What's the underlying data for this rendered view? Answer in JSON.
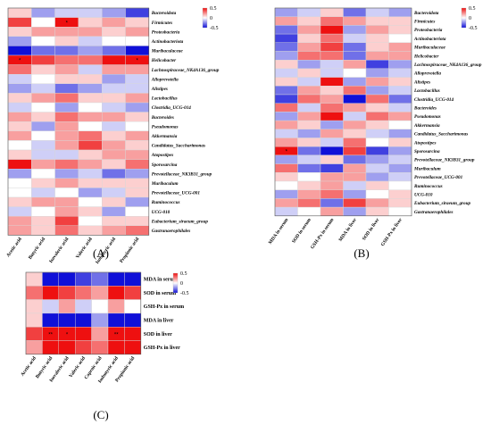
{
  "colors": {
    "low": "#1010d8",
    "mid": "#ffffff",
    "high": "#ee1010"
  },
  "legend": {
    "max": "0.5",
    "zero": "0",
    "min": "-0.5"
  },
  "chart_data": [
    {
      "type": "heatmap",
      "panel_label": "(A)",
      "rows": [
        "Bacteroidota",
        "Firmicutes",
        "Proteobacteria",
        "Actinobacteriota",
        "Muribaculaceae",
        "Helicobacter",
        "Lachnospiraceae_NK4A136_group",
        "Alloprevotella",
        "Alistipes",
        "Lactobacillus",
        "Clostridia_UCG-014",
        "Bacteroides",
        "Pseudomonas",
        "Akkermansia",
        "Candidatus_Saccharimonas",
        "Atopostipes",
        "Sporosarcina",
        "Prevotellaceae_NK3B31_group",
        "Muribaculum",
        "Prevotellaceae_UCG-001",
        "Ruminococcus",
        "UCG-010",
        "Eubacterium_siraeum_group",
        "Gastranaerophilales"
      ],
      "columns": [
        "Acetic acid",
        "Butyric acid",
        "Isovaleric acid",
        "Valeric acid",
        "Isobutyric acid",
        "Propionic acid"
      ],
      "values": [
        [
          0.1,
          -0.2,
          -0.1,
          -0.1,
          -0.2,
          -0.4
        ],
        [
          0.4,
          0.0,
          0.6,
          0.1,
          0.2,
          0.1
        ],
        [
          0.1,
          0.2,
          0.2,
          0.2,
          0.1,
          0.2
        ],
        [
          -0.2,
          0.0,
          0.1,
          -0.1,
          0.0,
          0.0
        ],
        [
          -0.7,
          -0.3,
          -0.3,
          -0.2,
          -0.3,
          -0.5
        ],
        [
          0.5,
          0.4,
          0.3,
          0.3,
          0.6,
          0.5
        ],
        [
          0.3,
          0.1,
          0.2,
          -0.1,
          0.2,
          0.2
        ],
        [
          -0.1,
          0.0,
          0.1,
          0.1,
          -0.2,
          -0.1
        ],
        [
          -0.2,
          -0.1,
          -0.3,
          -0.2,
          -0.1,
          -0.1
        ],
        [
          0.1,
          0.2,
          0.3,
          0.1,
          0.1,
          0.2
        ],
        [
          -0.1,
          0.0,
          -0.2,
          0.0,
          -0.1,
          -0.2
        ],
        [
          0.2,
          0.1,
          0.3,
          0.2,
          0.2,
          0.1
        ],
        [
          0.1,
          -0.2,
          0.2,
          0.0,
          -0.1,
          0.0
        ],
        [
          0.2,
          0.0,
          0.2,
          0.3,
          0.1,
          0.2
        ],
        [
          0.0,
          -0.1,
          0.2,
          0.4,
          0.2,
          0.1
        ],
        [
          0.1,
          -0.1,
          -0.1,
          0.1,
          0.2,
          0.2
        ],
        [
          0.5,
          0.2,
          0.3,
          0.2,
          0.1,
          0.3
        ],
        [
          -0.2,
          0.0,
          -0.2,
          -0.1,
          -0.3,
          -0.2
        ],
        [
          0.0,
          0.1,
          0.2,
          0.1,
          0.1,
          0.1
        ],
        [
          0.0,
          -0.1,
          0.0,
          -0.2,
          -0.1,
          0.1
        ],
        [
          0.1,
          0.2,
          0.2,
          0.0,
          0.1,
          -0.2
        ],
        [
          -0.1,
          0.0,
          0.2,
          0.1,
          -0.2,
          0.0
        ],
        [
          0.2,
          0.1,
          0.4,
          0.0,
          0.1,
          0.1
        ],
        [
          0.2,
          0.1,
          0.3,
          0.1,
          0.2,
          0.3
        ]
      ],
      "stars": [
        {
          "row": 1,
          "col": 2,
          "text": "*"
        },
        {
          "row": 5,
          "col": 0,
          "text": "*"
        },
        {
          "row": 5,
          "col": 5,
          "text": "*"
        }
      ],
      "legend_range": [
        -0.5,
        0.5
      ]
    },
    {
      "type": "heatmap",
      "panel_label": "(B)",
      "rows": [
        "Bacteroidota",
        "Firmicutes",
        "Proteobacteria",
        "Actinobacteriota",
        "Muribaculaceae",
        "Helicobacter",
        "Lachnospiraceae_NK4A136_group",
        "Alloprevotella",
        "Alistipes",
        "Lactobacillus",
        "Clostridia_UCG-014",
        "Bacteroides",
        "Pseudomonas",
        "Akkermansia",
        "Candidatus_Saccharimonas",
        "Atopostipes",
        "Sporosarcina",
        "Prevotellaceae_NK3B31_group",
        "Muribaculum",
        "Prevotellaceae_UCG-001",
        "Ruminococcus",
        "UCG-010",
        "Eubacterium_siraeum_group",
        "Gastranaerophilales"
      ],
      "columns": [
        "MDA in serum",
        "SOD in serum",
        "GSH-Px in serum",
        "MDA in liver",
        "SOD in liver",
        "GSH-Px in liver"
      ],
      "values": [
        [
          -0.2,
          -0.1,
          0.1,
          -0.3,
          -0.1,
          -0.2
        ],
        [
          0.2,
          0.1,
          0.3,
          0.2,
          0.1,
          0.1
        ],
        [
          -0.3,
          0.2,
          0.6,
          -0.2,
          0.2,
          0.1
        ],
        [
          -0.4,
          0.1,
          0.3,
          -0.1,
          0.1,
          0.0
        ],
        [
          -0.3,
          0.2,
          0.4,
          -0.3,
          0.1,
          0.2
        ],
        [
          -0.2,
          0.3,
          0.3,
          -0.3,
          0.2,
          0.2
        ],
        [
          0.1,
          -0.2,
          -0.1,
          0.2,
          -0.4,
          -0.2
        ],
        [
          -0.1,
          0.1,
          -0.1,
          0.0,
          -0.2,
          -0.1
        ],
        [
          0.1,
          -0.1,
          0.5,
          -0.2,
          0.2,
          0.1
        ],
        [
          -0.3,
          0.2,
          0.1,
          0.3,
          -0.2,
          -0.1
        ],
        [
          -0.4,
          0.3,
          0.2,
          -0.5,
          0.3,
          -0.3
        ],
        [
          0.3,
          -0.1,
          0.3,
          0.2,
          0.1,
          -0.1
        ],
        [
          -0.2,
          0.2,
          0.5,
          -0.1,
          0.3,
          0.2
        ],
        [
          0.2,
          0.1,
          -0.2,
          0.2,
          0.1,
          0.0
        ],
        [
          -0.1,
          -0.2,
          0.2,
          0.1,
          -0.1,
          -0.2
        ],
        [
          0.2,
          0.1,
          -0.1,
          0.3,
          0.0,
          0.1
        ],
        [
          0.6,
          -0.3,
          -0.6,
          0.4,
          -0.4,
          -0.2
        ],
        [
          -0.2,
          -0.1,
          0.1,
          -0.3,
          -0.2,
          -0.1
        ],
        [
          0.3,
          -0.3,
          -0.4,
          0.2,
          -0.1,
          -0.2
        ],
        [
          0.1,
          0.0,
          0.2,
          0.2,
          -0.2,
          -0.1
        ],
        [
          0.0,
          0.1,
          0.2,
          -0.1,
          0.1,
          0.0
        ],
        [
          -0.2,
          0.2,
          0.3,
          -0.2,
          0.0,
          0.1
        ],
        [
          0.2,
          0.3,
          -0.3,
          0.4,
          0.2,
          0.1
        ],
        [
          -0.1,
          0.0,
          0.2,
          -0.2,
          0.1,
          0.0
        ]
      ],
      "stars": [
        {
          "row": 16,
          "col": 0,
          "text": "*"
        }
      ],
      "legend_range": [
        -0.5,
        0.5
      ]
    },
    {
      "type": "heatmap",
      "panel_label": "(C)",
      "rows": [
        "MDA in serum",
        "SOD in serum",
        "GSH-Px in serum",
        "MDA in liver",
        "SOD in liver",
        "GSH-Px in liver"
      ],
      "columns": [
        "Acetic acid",
        "Butyric acid",
        "Isovaleric acid",
        "Valeric acid",
        "Caproic acid",
        "Isobutyric acid",
        "Propionic acid"
      ],
      "values": [
        [
          0.1,
          -0.6,
          -0.5,
          -0.4,
          -0.3,
          -0.6,
          -0.5
        ],
        [
          0.3,
          0.5,
          0.4,
          0.3,
          0.2,
          0.5,
          0.4
        ],
        [
          0.1,
          -0.1,
          0.2,
          -0.1,
          0.0,
          0.2,
          0.0
        ],
        [
          0.1,
          -0.5,
          -0.6,
          -0.5,
          -0.2,
          -0.6,
          -0.5
        ],
        [
          0.4,
          0.7,
          0.7,
          0.5,
          0.2,
          0.7,
          0.5
        ],
        [
          0.2,
          0.5,
          0.5,
          0.4,
          0.3,
          0.6,
          0.5
        ]
      ],
      "stars": [
        {
          "row": 4,
          "col": 1,
          "text": "**"
        },
        {
          "row": 4,
          "col": 2,
          "text": "*"
        },
        {
          "row": 4,
          "col": 5,
          "text": "**"
        }
      ],
      "legend_range": [
        -0.5,
        0.5
      ]
    }
  ]
}
